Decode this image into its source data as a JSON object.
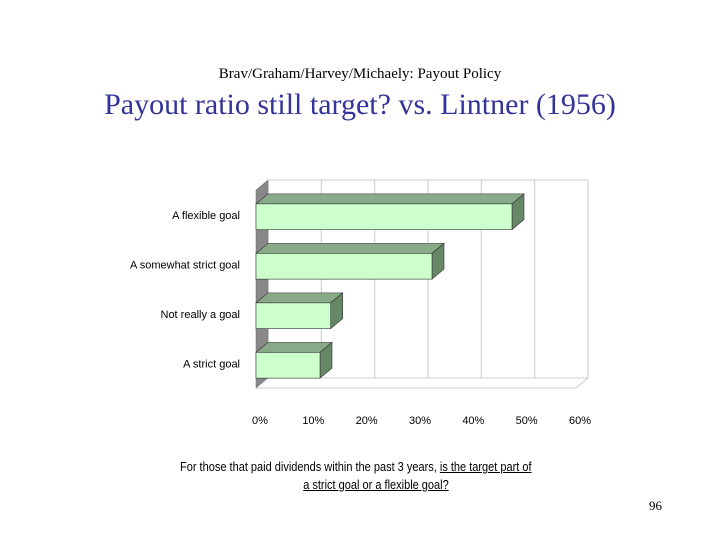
{
  "slide": {
    "header": "Brav/Graham/Harvey/Michaely: Payout Policy",
    "title": "Payout ratio still target? vs. Lintner (1956)",
    "question_part1": "For those that paid dividends within the past 3 years, ",
    "question_part2": "is the target part of",
    "question_line2": "a strict goal or a flexible goal?",
    "page_number": "96"
  },
  "chart_data": {
    "type": "bar",
    "orientation": "horizontal",
    "categories": [
      "A flexible goal",
      "A somewhat strict goal",
      "Not really a goal",
      "A strict goal"
    ],
    "values": [
      48,
      33,
      14,
      12
    ],
    "value_unit": "%",
    "xlim": [
      0,
      60
    ],
    "xticks": [
      0,
      10,
      20,
      30,
      40,
      50,
      60
    ],
    "tick_labels": [
      "0%",
      "10%",
      "20%",
      "30%",
      "40%",
      "50%",
      "60%"
    ],
    "title": "",
    "xlabel": "",
    "ylabel": "",
    "grid": true,
    "bar_3d": true,
    "colors": {
      "bar_front": "#ccffcc",
      "bar_top": "#88aa88",
      "bar_side": "#668866",
      "wall": "#888888",
      "grid": "#cccccc"
    }
  }
}
